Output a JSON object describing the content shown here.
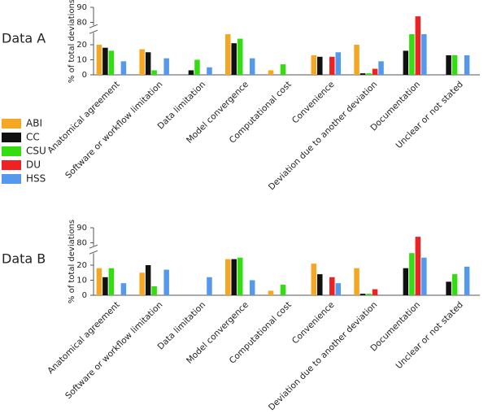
{
  "chart_data": [
    {
      "type": "bar",
      "title": "Data A",
      "y_label": "% of total deviations",
      "categories": [
        "Anatomical agreement",
        "Software or workflow limitation",
        "Data limitation",
        "Model convergence",
        "Computational cost",
        "Convenience",
        "Deviation due to another deviation",
        "Documentation",
        "Unclear or not stated"
      ],
      "series": [
        {
          "name": "ABI",
          "color": "#f5a623",
          "values": [
            20,
            17,
            0,
            27,
            3,
            13,
            20,
            0,
            0
          ]
        },
        {
          "name": "CC",
          "color": "#111111",
          "values": [
            18,
            15,
            3,
            21,
            0,
            12,
            1,
            16,
            13
          ]
        },
        {
          "name": "CSU",
          "color": "#33dd11",
          "values": [
            16,
            3,
            10,
            24,
            7,
            0,
            1,
            27,
            13
          ]
        },
        {
          "name": "DU",
          "color": "#ee2222",
          "values": [
            0,
            0,
            0,
            0,
            0,
            12,
            4,
            84,
            0
          ]
        },
        {
          "name": "HSS",
          "color": "#5599ee",
          "values": [
            9,
            11,
            5,
            11,
            0,
            15,
            9,
            27,
            13
          ]
        }
      ],
      "ylim": [
        0,
        90
      ],
      "yticks": [
        0,
        10,
        20,
        80,
        90
      ],
      "ybreak": [
        28,
        78
      ]
    },
    {
      "type": "bar",
      "title": "Data B",
      "y_label": "% of total deviations",
      "categories": [
        "Anatomical agreement",
        "Software or workflow limitation",
        "Data limitation",
        "Model convergence",
        "Computational cost",
        "Convenience",
        "Deviation due to another deviation",
        "Documentation",
        "Unclear or not stated"
      ],
      "series": [
        {
          "name": "ABI",
          "color": "#f5a623",
          "values": [
            18,
            15,
            0,
            24,
            3,
            21,
            18,
            0,
            0
          ]
        },
        {
          "name": "CC",
          "color": "#111111",
          "values": [
            12,
            20,
            0,
            24,
            0,
            14,
            1,
            18,
            9
          ]
        },
        {
          "name": "CSU",
          "color": "#33dd11",
          "values": [
            18,
            6,
            0,
            25,
            7,
            0,
            1,
            28,
            14
          ]
        },
        {
          "name": "DU",
          "color": "#ee2222",
          "values": [
            0,
            0,
            0,
            0,
            0,
            12,
            4,
            84,
            0
          ]
        },
        {
          "name": "HSS",
          "color": "#5599ee",
          "values": [
            8,
            17,
            12,
            10,
            0,
            8,
            0,
            25,
            19
          ]
        }
      ],
      "ylim": [
        0,
        90
      ],
      "yticks": [
        0,
        10,
        20,
        80,
        90
      ],
      "ybreak": [
        28,
        78
      ]
    }
  ]
}
